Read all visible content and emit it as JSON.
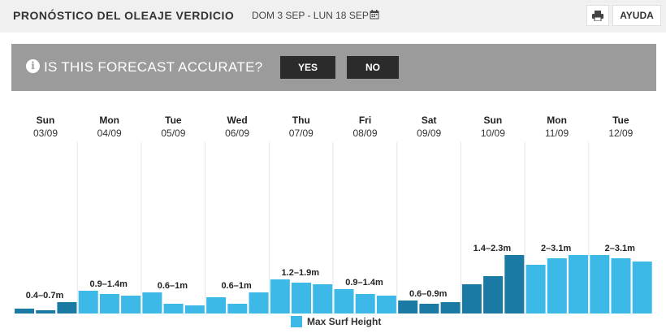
{
  "header": {
    "title": "PRONÓSTICO DEL OLEAJE VERDICIO",
    "date_range": "DOM 3 SEP - LUN 18 SEP",
    "help_label": "AYUDA"
  },
  "banner": {
    "question": "IS THIS FORECAST ACCURATE?",
    "yes_label": "YES",
    "no_label": "NO"
  },
  "days": [
    {
      "name": "Sun",
      "date": "03/09"
    },
    {
      "name": "Mon",
      "date": "04/09"
    },
    {
      "name": "Tue",
      "date": "05/09"
    },
    {
      "name": "Wed",
      "date": "06/09"
    },
    {
      "name": "Thu",
      "date": "07/09"
    },
    {
      "name": "Fri",
      "date": "08/09"
    },
    {
      "name": "Sat",
      "date": "09/09"
    },
    {
      "name": "Sun",
      "date": "10/09"
    },
    {
      "name": "Mon",
      "date": "11/09"
    },
    {
      "name": "Tue",
      "date": "12/09"
    }
  ],
  "colors": {
    "light_bar": "#3cb9e6",
    "dark_bar": "#1a7aa3"
  },
  "chart_data": {
    "type": "bar",
    "series": [
      {
        "name": "Max Surf Height",
        "values": [
          [
            0.3,
            0.2,
            0.7
          ],
          [
            1.4,
            1.2,
            1.1
          ],
          [
            1.3,
            0.6,
            0.5
          ],
          [
            1.0,
            0.6,
            1.3
          ],
          [
            2.1,
            1.9,
            1.8
          ],
          [
            1.5,
            1.2,
            1.1
          ],
          [
            0.8,
            0.6,
            0.7
          ],
          [
            1.8,
            2.3,
            3.6
          ],
          [
            3.0,
            3.4,
            3.6
          ],
          [
            3.6,
            3.4,
            3.2
          ]
        ],
        "dark": [
          [
            true,
            true,
            true
          ],
          [
            false,
            false,
            false
          ],
          [
            false,
            false,
            false
          ],
          [
            false,
            false,
            false
          ],
          [
            false,
            false,
            false
          ],
          [
            false,
            false,
            false
          ],
          [
            true,
            true,
            true
          ],
          [
            true,
            true,
            true
          ],
          [
            false,
            false,
            false
          ],
          [
            false,
            false,
            false
          ]
        ]
      }
    ],
    "day_labels": [
      "0.4–0.7m",
      "0.9–1.4m",
      "0.6–1m",
      "0.6–1m",
      "1.2–1.9m",
      "0.9–1.4m",
      "0.6–0.9m",
      "1.4–2.3m",
      "2–3.1m",
      "2–3.1m"
    ],
    "legend": "Max Surf Height"
  }
}
